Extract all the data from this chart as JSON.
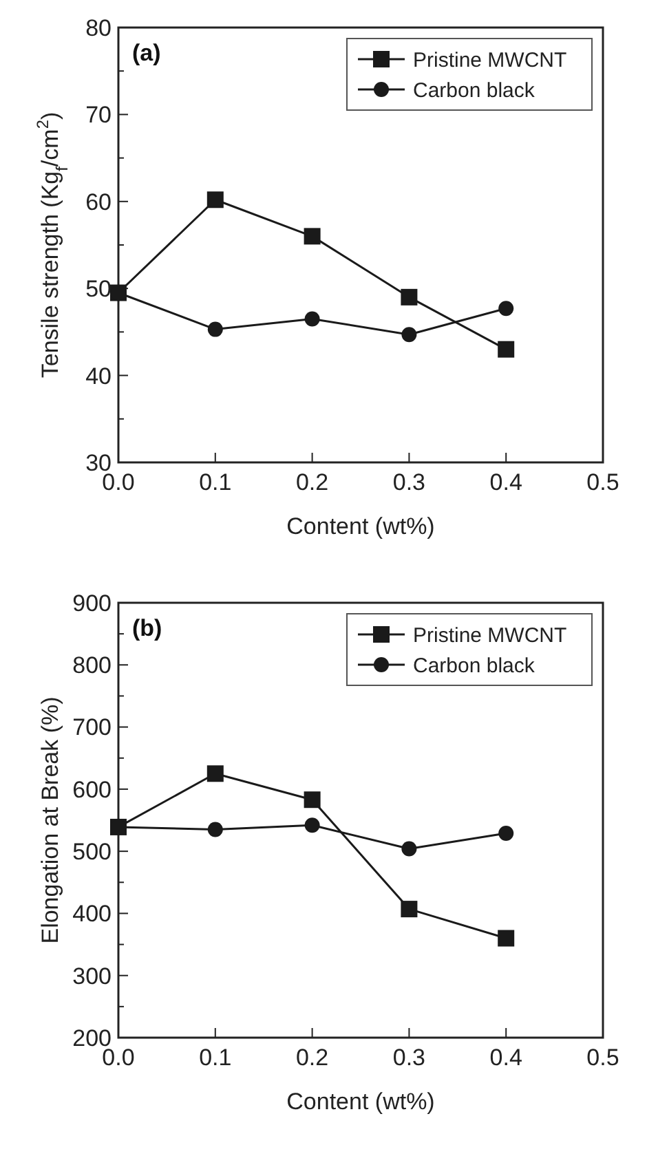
{
  "chart_data": [
    {
      "type": "line",
      "annotations": [
        "(a)"
      ],
      "xlabel": "Content (wt%)",
      "ylabel": "Tensile strength (Kg$_{f}$/cm$^{2}$)",
      "x": [
        0,
        0.1,
        0.2,
        0.3,
        0.4
      ],
      "xlim": [
        0,
        0.5
      ],
      "xticks": [
        {
          "value": 0,
          "label": "0.0"
        },
        0.1,
        0.2,
        0.3,
        0.4,
        0.5
      ],
      "ylim": [
        30,
        80
      ],
      "yticks": [
        30,
        {
          "value": 35,
          "label": null
        },
        40,
        {
          "value": 45,
          "label": null
        },
        50,
        {
          "value": 55,
          "label": null
        },
        60,
        {
          "value": 65,
          "label": null
        },
        70,
        {
          "value": 75,
          "label": null
        },
        80
      ],
      "legend": "top right",
      "grid": false,
      "series": [
        {
          "name": "Pristine MWCNT",
          "color": "#1a1a1a",
          "marker": "square",
          "values": [
            49.5,
            60.2,
            56.0,
            49.0,
            43.0
          ]
        },
        {
          "name": "Carbon black",
          "color": "#1a1a1a",
          "marker": "circle",
          "values": [
            49.5,
            45.3,
            46.5,
            44.7,
            47.7
          ]
        }
      ]
    },
    {
      "type": "line",
      "annotations": [
        "(b)"
      ],
      "xlabel": "Content (wt%)",
      "ylabel": "Elongation at Break (%)",
      "x": [
        0,
        0.1,
        0.2,
        0.3,
        0.4
      ],
      "xlim": [
        0,
        0.5
      ],
      "xticks": [
        {
          "value": 0,
          "label": "0.0"
        },
        0.1,
        0.2,
        0.3,
        0.4,
        0.5
      ],
      "ylim": [
        200,
        900
      ],
      "yticks": [
        200,
        {
          "value": 250,
          "label": null
        },
        300,
        {
          "value": 350,
          "label": null
        },
        400,
        {
          "value": 450,
          "label": null
        },
        500,
        {
          "value": 550,
          "label": null
        },
        600,
        {
          "value": 650,
          "label": null
        },
        700,
        {
          "value": 750,
          "label": null
        },
        800,
        {
          "value": 850,
          "label": null
        },
        900
      ],
      "legend": "top right",
      "grid": false,
      "series": [
        {
          "name": "Pristine MWCNT",
          "color": "#1a1a1a",
          "marker": "square",
          "values": [
            539,
            625,
            583,
            407,
            360
          ]
        },
        {
          "name": "Carbon black",
          "color": "#1a1a1a",
          "marker": "circle",
          "values": [
            539,
            535,
            542,
            504,
            529
          ]
        }
      ]
    }
  ]
}
